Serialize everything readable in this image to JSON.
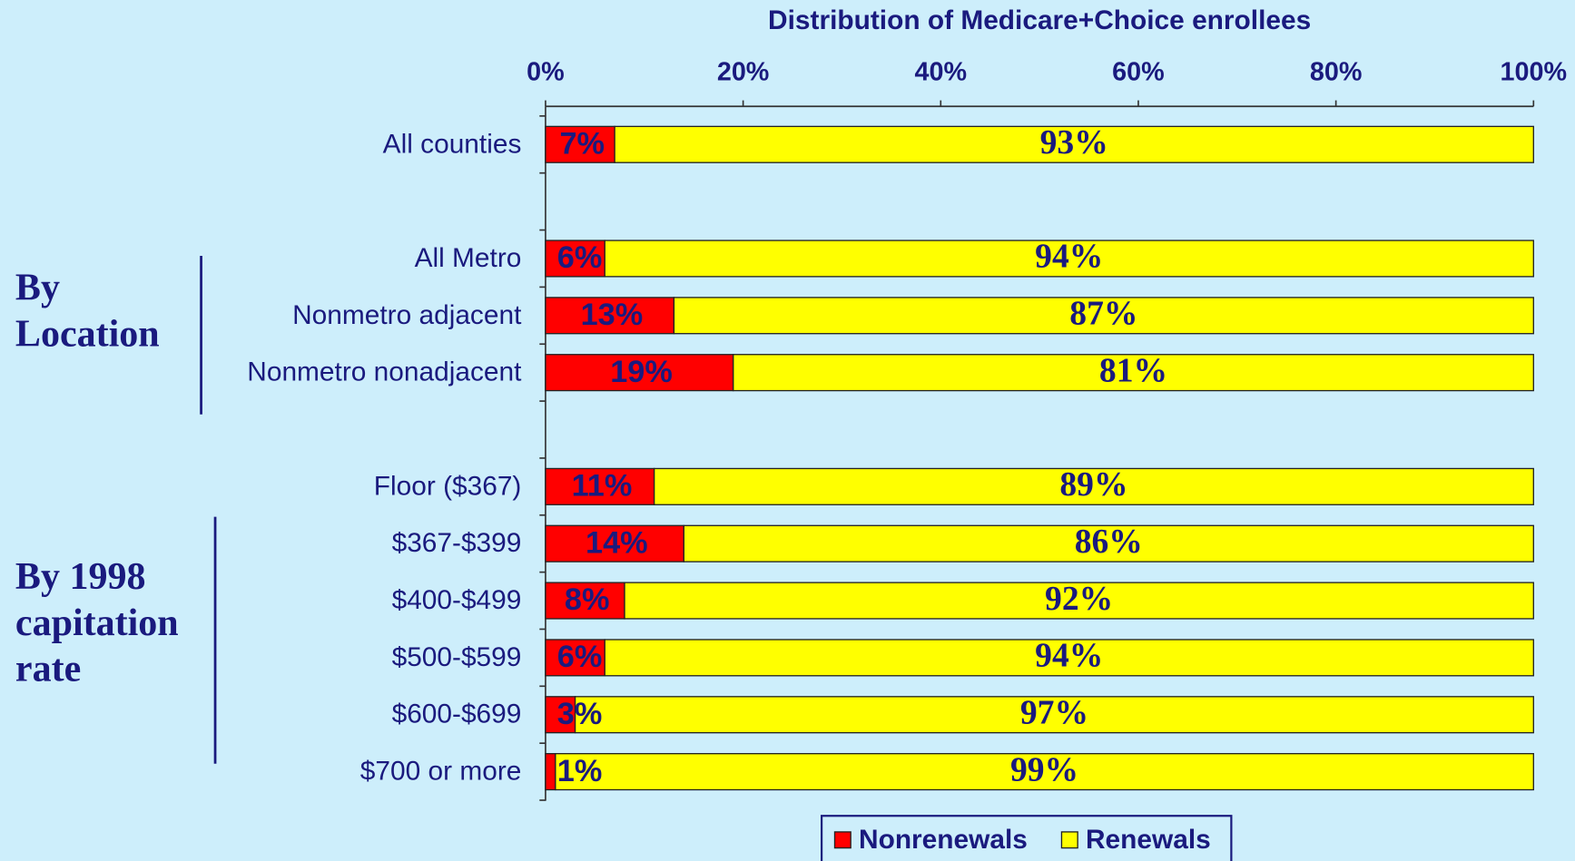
{
  "chart_data": {
    "type": "stacked-barh",
    "title": "Distribution of Medicare+Choice enrollees",
    "categories": [
      "All counties",
      null,
      "All Metro",
      "Nonmetro adjacent",
      "Nonmetro nonadjacent",
      null,
      "Floor ($367)",
      "$367-$399",
      "$400-$499",
      "$500-$599",
      "$600-$699",
      "$700 or more"
    ],
    "series": [
      {
        "name": "Nonrenewals",
        "color": "#ff0000",
        "values": [
          7,
          null,
          6,
          13,
          19,
          null,
          11,
          14,
          8,
          6,
          3,
          1
        ],
        "value_labels": [
          "7%",
          null,
          "6%",
          "13%",
          "19%",
          null,
          "11%",
          "14%",
          "8%",
          "6%",
          "3%",
          "1%"
        ]
      },
      {
        "name": "Renewals",
        "color": "#ffff00",
        "values": [
          93,
          null,
          94,
          87,
          81,
          null,
          89,
          86,
          92,
          94,
          97,
          99
        ],
        "value_labels": [
          "93%",
          null,
          "94%",
          "87%",
          "81%",
          null,
          "89%",
          "86%",
          "92%",
          "94%",
          "97%",
          "99%"
        ]
      }
    ],
    "xlim": [
      0,
      100
    ],
    "xticks": [
      {
        "value": 0,
        "label": "0%"
      },
      {
        "value": 20,
        "label": "20%"
      },
      {
        "value": 40,
        "label": "40%"
      },
      {
        "value": 60,
        "label": "60%"
      },
      {
        "value": 80,
        "label": "80%"
      },
      {
        "value": 100,
        "label": "100%"
      }
    ],
    "legend": "bottom",
    "annotations": [
      {
        "lines": [
          "By",
          "Location"
        ]
      },
      {
        "lines": [
          "By 1998",
          "capitation",
          "rate"
        ]
      }
    ]
  }
}
